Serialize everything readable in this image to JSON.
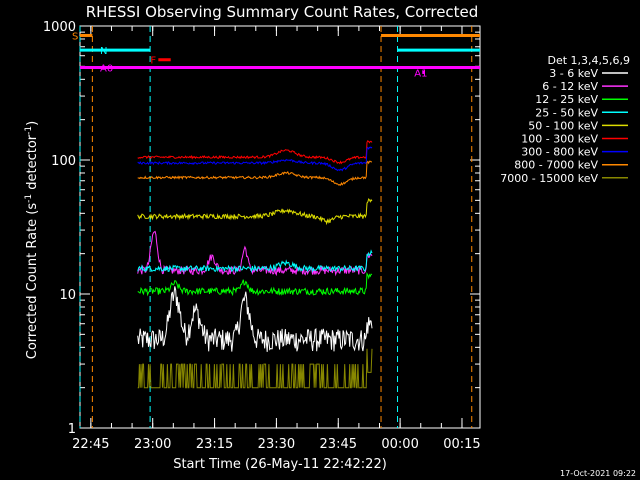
{
  "chart_data": {
    "type": "line",
    "title": "RHESSI Observing Summary Count Rates, Corrected",
    "xlabel": "Start Time (26-May-11 22:42:22)",
    "ylabel_main": "Corrected Count Rate (s",
    "ylabel_sup1": "-1",
    "ylabel_mid": " detector",
    "ylabel_sup2": "-1",
    "ylabel_end": ")",
    "y_scale": "log",
    "ylim": [
      1,
      1000
    ],
    "xlim_minutes": [
      0,
      97
    ],
    "x_ticks": [
      {
        "label": "22:45",
        "min": 2.63
      },
      {
        "label": "23:00",
        "min": 17.63
      },
      {
        "label": "23:15",
        "min": 32.63
      },
      {
        "label": "23:30",
        "min": 47.63
      },
      {
        "label": "23:45",
        "min": 62.63
      },
      {
        "label": "00:00",
        "min": 77.63
      },
      {
        "label": "00:15",
        "min": 92.63
      }
    ],
    "y_ticks": [
      {
        "label": "1",
        "value": 1
      },
      {
        "label": "10",
        "value": 10
      },
      {
        "label": "100",
        "value": 100
      },
      {
        "label": "1000",
        "value": 1000
      }
    ],
    "legend_title": "Det 1,3,4,5,6,9",
    "legend_placement": "right",
    "series": [
      {
        "name": "3 - 6 keV",
        "color": "#ffffff",
        "start": 14,
        "base": 4.6,
        "noise": 0.2,
        "features": [
          [
            23,
            10,
            1.5
          ],
          [
            40,
            9,
            1.4
          ],
          [
            28,
            7.5,
            1.5
          ]
        ]
      },
      {
        "name": "6 - 12 keV",
        "color": "#ff33ff",
        "start": 14,
        "base": 15,
        "noise": 0.07,
        "features": [
          [
            18,
            29,
            1.0
          ],
          [
            40,
            22,
            0.8
          ],
          [
            32,
            19,
            1.2
          ]
        ]
      },
      {
        "name": "12 - 25 keV",
        "color": "#00ff00",
        "start": 14,
        "base": 10.5,
        "noise": 0.06,
        "features": [
          [
            23,
            12,
            1.2
          ],
          [
            40,
            12.5,
            1.0
          ]
        ]
      },
      {
        "name": "25 - 50 keV",
        "color": "#00ffff",
        "start": 14,
        "base": 15.5,
        "noise": 0.05,
        "features": [
          [
            50,
            17,
            2.5
          ]
        ]
      },
      {
        "name": "50 - 100 keV",
        "color": "#dddd00",
        "start": 14,
        "base": 38,
        "noise": 0.04,
        "features": [
          [
            50,
            42,
            3.5
          ],
          [
            60,
            35,
            2.0
          ]
        ]
      },
      {
        "name": "100 - 300 keV",
        "color": "#ff0000",
        "start": 14,
        "base": 105,
        "noise": 0.02,
        "features": [
          [
            50,
            118,
            3.0
          ],
          [
            63,
            96,
            2.5
          ]
        ]
      },
      {
        "name": "300 - 800 keV",
        "color": "#0000ff",
        "start": 14,
        "base": 95,
        "noise": 0.02,
        "features": [
          [
            50,
            100,
            3.0
          ],
          [
            63,
            84,
            2.5
          ]
        ]
      },
      {
        "name": "800 - 7000 keV",
        "color": "#ff8800",
        "start": 14,
        "base": 74,
        "noise": 0.02,
        "features": [
          [
            50,
            80,
            3.0
          ],
          [
            63,
            66,
            2.5
          ]
        ]
      },
      {
        "name": "7000 - 15000 keV",
        "color": "#888800",
        "start": 14,
        "base": 2.0,
        "noise": 0.0,
        "features": []
      }
    ],
    "attenuator_lines": [
      {
        "min": 0,
        "color": "#00ffff"
      },
      {
        "min": 3,
        "color": "#ff8800"
      },
      {
        "min": 17,
        "color": "#00ffff"
      },
      {
        "min": 73,
        "color": "#ff8800"
      },
      {
        "min": 77,
        "color": "#00ffff"
      },
      {
        "min": 95,
        "color": "#ff8800"
      }
    ],
    "flags": [
      {
        "label": "S",
        "color": "#ff8800",
        "value": 850,
        "segments": [
          [
            0,
            3
          ],
          [
            73,
            97
          ]
        ]
      },
      {
        "label": "N",
        "color": "#00ffff",
        "value": 660,
        "segments": [
          [
            0,
            17
          ],
          [
            77,
            97
          ]
        ]
      },
      {
        "label": "F",
        "color": "#ff0000",
        "value": 560,
        "segments": [
          [
            19,
            22
          ]
        ]
      },
      {
        "label": "A0",
        "color": "#ff00ff",
        "value": 490,
        "segments": [
          [
            0,
            97
          ]
        ]
      },
      {
        "label": "A1",
        "color": "#ff00ff",
        "value": 450,
        "segments": [
          [
            83,
            83.6
          ]
        ]
      }
    ],
    "timestamp": "17-Oct-2021 09:22"
  }
}
